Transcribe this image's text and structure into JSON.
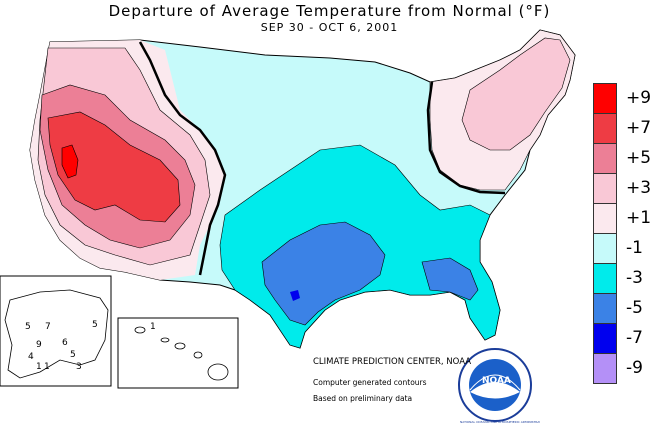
{
  "title": "Departure of Average Temperature from Normal (°F)",
  "subtitle": "SEP 30 - OCT  6, 2001",
  "legend": [
    {
      "label": "+9",
      "color": "#ff0000"
    },
    {
      "label": "+7",
      "color": "#ee3c44"
    },
    {
      "label": "+5",
      "color": "#ec7f96"
    },
    {
      "label": "+3",
      "color": "#f9c8d6"
    },
    {
      "label": "+1",
      "color": "#fbe9ee"
    },
    {
      "label": "-1",
      "color": "#c6fafa"
    },
    {
      "label": "-3",
      "color": "#00ebeb"
    },
    {
      "label": "-5",
      "color": "#3b82e6"
    },
    {
      "label": "-7",
      "color": "#0000ee"
    },
    {
      "label": "-9",
      "color": "#b490f7"
    }
  ],
  "credits": {
    "center": "CLIMATE PREDICTION CENTER, NOAA",
    "line2": "Computer generated contours",
    "line3": "Based on preliminary data"
  },
  "logo": {
    "text": "NOAA",
    "ring_text": "NATIONAL OCEANIC AND ATMOSPHERIC ADMINISTRATION • U.S. DEPARTMENT OF COMMERCE"
  },
  "alaska_labels": [
    "5",
    "7",
    "5",
    "9",
    "6",
    "4",
    "1",
    "5",
    "3",
    "1"
  ],
  "hawaii_labels": [
    "1"
  ]
}
